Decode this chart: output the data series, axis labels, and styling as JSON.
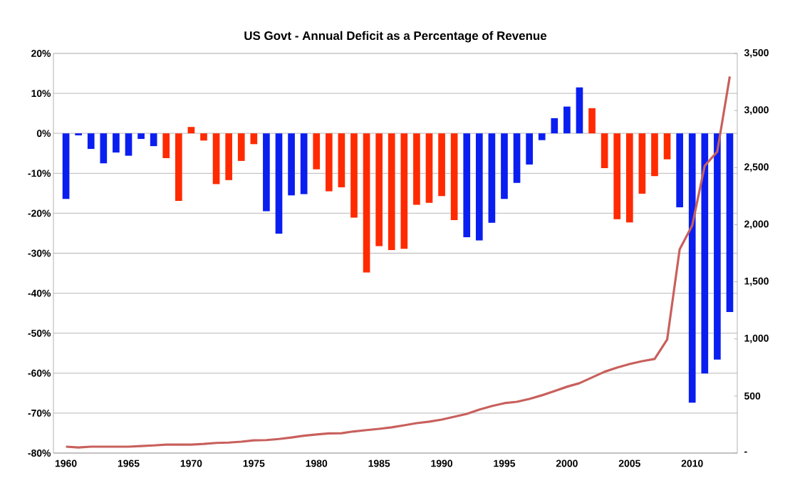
{
  "chart_data": {
    "type": "bar",
    "title": "US Govt - Annual Deficit as a Percentage of Revenue",
    "x": [
      1960,
      1961,
      1962,
      1963,
      1964,
      1965,
      1966,
      1967,
      1968,
      1969,
      1970,
      1971,
      1972,
      1973,
      1974,
      1975,
      1976,
      1977,
      1978,
      1979,
      1980,
      1981,
      1982,
      1983,
      1984,
      1985,
      1986,
      1987,
      1988,
      1989,
      1990,
      1991,
      1992,
      1993,
      1994,
      1995,
      1996,
      1997,
      1998,
      1999,
      2000,
      2001,
      2002,
      2003,
      2004,
      2005,
      2006,
      2007,
      2008,
      2009,
      2010,
      2011,
      2012,
      2013
    ],
    "series": [
      {
        "values": [
          -16.4,
          -0.5,
          -3.9,
          -7.5,
          -4.8,
          -5.6,
          -1.4,
          -3.2,
          -6.2,
          -16.9,
          1.6,
          -1.8,
          -12.7,
          -11.7,
          -6.9,
          -2.7,
          -19.5,
          -25.1,
          -15.5,
          -15.2,
          -9.0,
          -14.5,
          -13.5,
          -21.1,
          -34.8,
          -28.2,
          -29.2,
          -28.9,
          -17.9,
          -17.4,
          -15.7,
          -21.7,
          -26.0,
          -26.8,
          -22.4,
          -16.4,
          -12.4,
          -7.8,
          -1.7,
          3.8,
          6.7,
          11.5,
          6.3,
          -8.7,
          -21.5,
          -22.3,
          -15.1,
          -10.7,
          -6.5,
          -18.5,
          -67.4,
          -60.1,
          -56.6,
          -44.7
        ],
        "colors": [
          "#0a1ef0",
          "#0a1ef0",
          "#0a1ef0",
          "#0a1ef0",
          "#0a1ef0",
          "#0a1ef0",
          "#0a1ef0",
          "#0a1ef0",
          "#ff2a00",
          "#ff2a00",
          "#ff2a00",
          "#ff2a00",
          "#ff2a00",
          "#ff2a00",
          "#ff2a00",
          "#ff2a00",
          "#0a1ef0",
          "#0a1ef0",
          "#0a1ef0",
          "#0a1ef0",
          "#ff2a00",
          "#ff2a00",
          "#ff2a00",
          "#ff2a00",
          "#ff2a00",
          "#ff2a00",
          "#ff2a00",
          "#ff2a00",
          "#ff2a00",
          "#ff2a00",
          "#ff2a00",
          "#ff2a00",
          "#0a1ef0",
          "#0a1ef0",
          "#0a1ef0",
          "#0a1ef0",
          "#0a1ef0",
          "#0a1ef0",
          "#0a1ef0",
          "#0a1ef0",
          "#0a1ef0",
          "#0a1ef0",
          "#ff2a00",
          "#ff2a00",
          "#ff2a00",
          "#ff2a00",
          "#ff2a00",
          "#ff2a00",
          "#ff2a00",
          "#0a1ef0",
          "#0a1ef0",
          "#0a1ef0",
          "#0a1ef0",
          "#0a1ef0"
        ]
      },
      {
        "type": "line",
        "axis": "y2",
        "color": "#c8605c",
        "values": [
          56,
          49,
          56,
          56,
          56,
          56,
          62,
          67,
          74,
          74,
          74,
          80,
          89,
          92,
          100,
          112,
          114,
          123,
          136,
          152,
          163,
          172,
          174,
          190,
          201,
          212,
          225,
          243,
          262,
          275,
          293,
          318,
          343,
          381,
          412,
          437,
          449,
          474,
          506,
          543,
          581,
          612,
          662,
          712,
          749,
          780,
          805,
          824,
          994,
          1785,
          1993,
          2516,
          2640,
          3298
        ]
      }
    ],
    "xlim": [
      1959,
      2013.6
    ],
    "xticks": [
      1960,
      1965,
      1970,
      1975,
      1980,
      1985,
      1990,
      1995,
      2000,
      2005,
      2010
    ],
    "ylim": [
      -80,
      20
    ],
    "yticks": [
      {
        "value": -80,
        "label": "-80%"
      },
      {
        "value": -70,
        "label": "-70%"
      },
      {
        "value": -60,
        "label": "-60%"
      },
      {
        "value": -50,
        "label": "-50%"
      },
      {
        "value": -40,
        "label": "-40%"
      },
      {
        "value": -30,
        "label": "-30%"
      },
      {
        "value": -20,
        "label": "-20%"
      },
      {
        "value": -10,
        "label": "-10%"
      },
      {
        "value": 0,
        "label": "0%"
      },
      {
        "value": 10,
        "label": "10%"
      },
      {
        "value": 20,
        "label": "20%"
      }
    ],
    "y2lim": [
      0,
      3500
    ],
    "y2ticks": [
      {
        "value": 0,
        "label": "-"
      },
      {
        "value": 500,
        "label": "500"
      },
      {
        "value": 1000,
        "label": "1,000"
      },
      {
        "value": 1500,
        "label": "1,500"
      },
      {
        "value": 2000,
        "label": "2,000"
      },
      {
        "value": 2500,
        "label": "2,500"
      },
      {
        "value": 3000,
        "label": "3,000"
      },
      {
        "value": 3500,
        "label": "3,500"
      }
    ],
    "grid": "y"
  }
}
